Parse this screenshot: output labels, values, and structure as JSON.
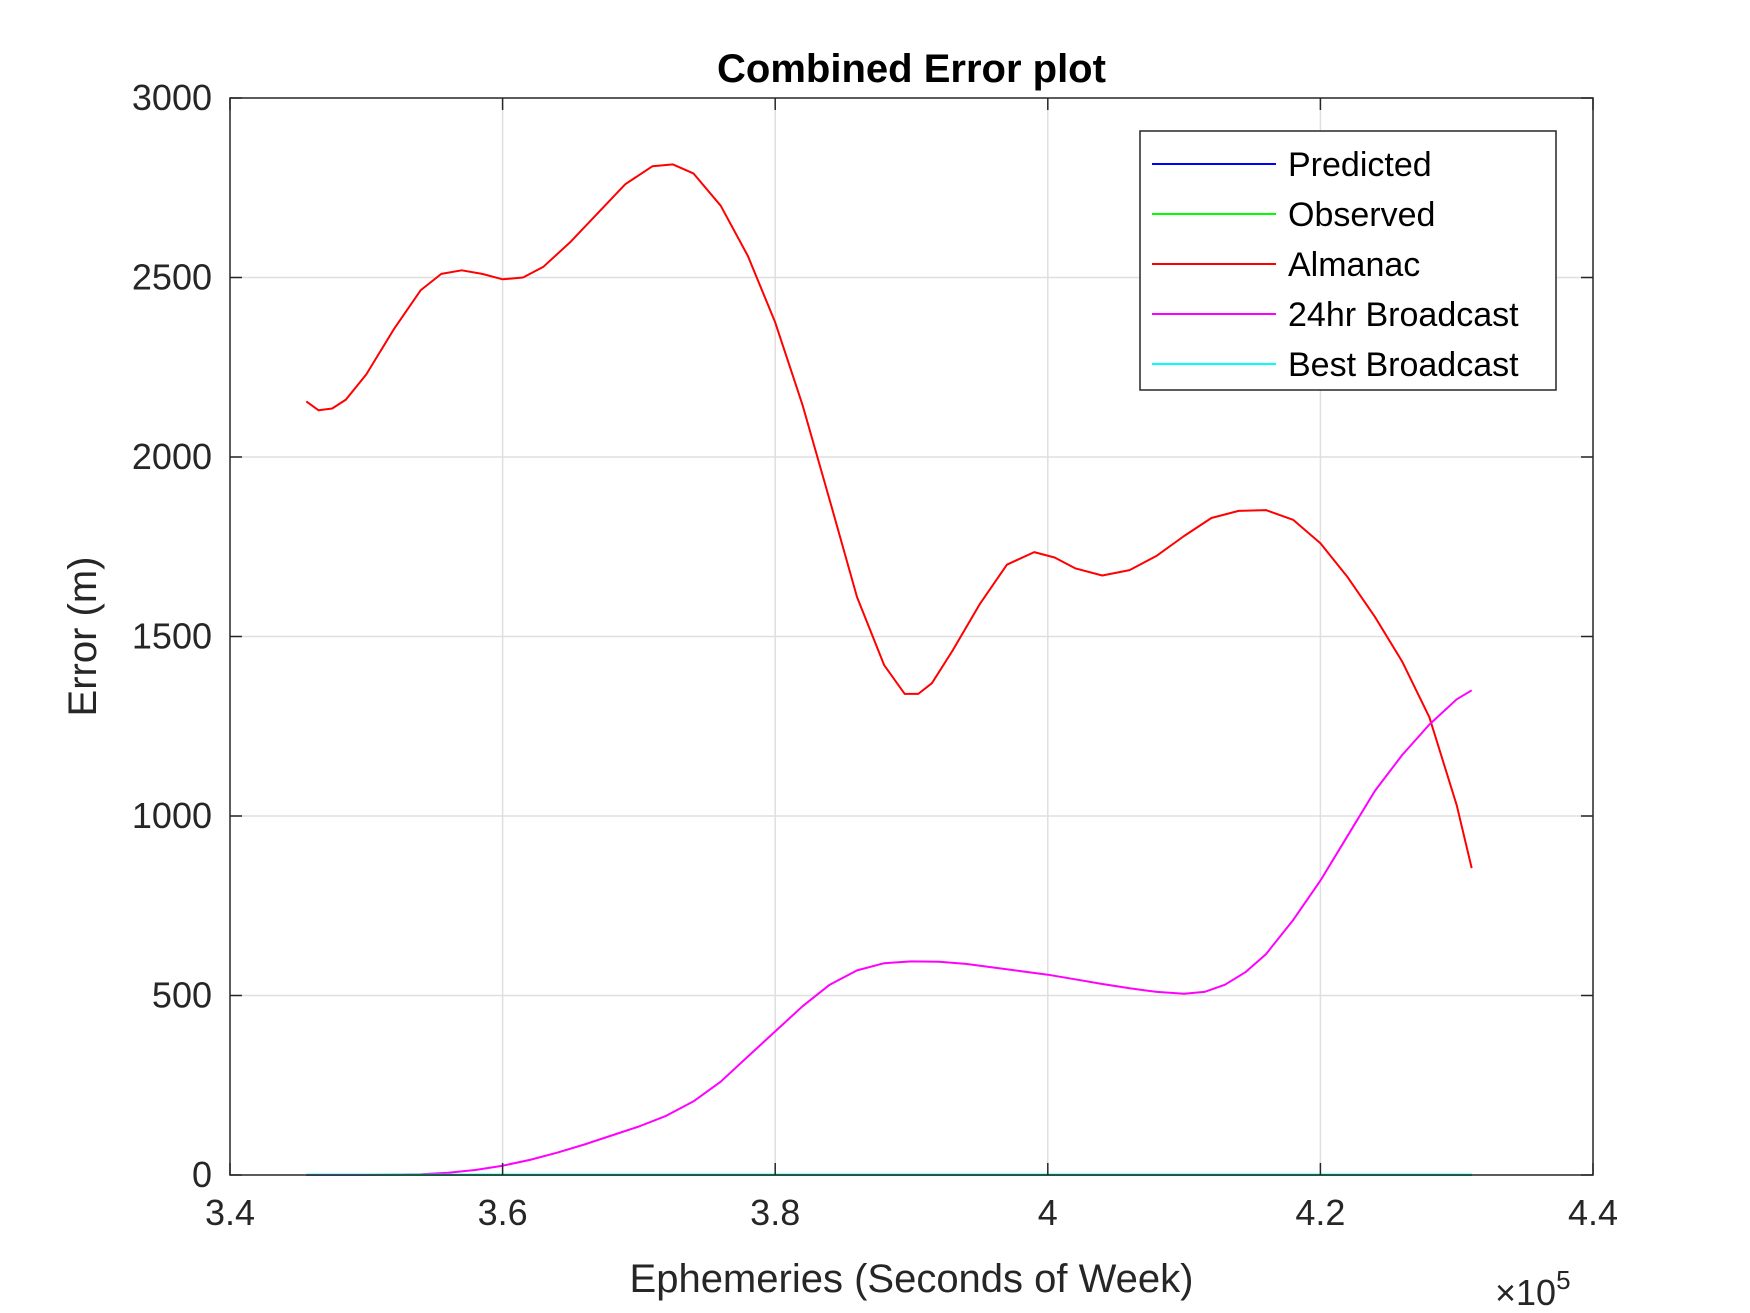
{
  "chart_data": {
    "type": "line",
    "title": "Combined Error plot",
    "xlabel": "Ephemeries (Seconds of Week)",
    "ylabel": "Error (m)",
    "x_exponent": {
      "base": "×10",
      "power": "5"
    },
    "xlim": [
      340000,
      440000
    ],
    "ylim": [
      0,
      3000
    ],
    "xticks": [
      340000,
      360000,
      380000,
      400000,
      420000,
      440000
    ],
    "xtick_labels": [
      "3.4",
      "3.6",
      "3.8",
      "4",
      "4.2",
      "4.4"
    ],
    "yticks": [
      0,
      500,
      1000,
      1500,
      2000,
      2500,
      3000
    ],
    "ytick_labels": [
      "0",
      "500",
      "1000",
      "1500",
      "2000",
      "2500",
      "3000"
    ],
    "grid": true,
    "legend_position": "top-right",
    "series": [
      {
        "name": "Predicted",
        "color": "#0000ff",
        "x": [
          345600,
          431100
        ],
        "y": [
          0,
          0
        ]
      },
      {
        "name": "Observed",
        "color": "#00ff00",
        "x": [
          345600,
          431100
        ],
        "y": [
          0,
          0
        ]
      },
      {
        "name": "Almanac",
        "color": "#ff0000",
        "x": [
          345600,
          346500,
          347500,
          348500,
          350000,
          352000,
          354000,
          355500,
          357000,
          358500,
          360000,
          361500,
          363000,
          365000,
          367000,
          369000,
          371000,
          372500,
          374000,
          376000,
          378000,
          380000,
          382000,
          384000,
          386000,
          388000,
          389500,
          390500,
          391500,
          393000,
          395000,
          397000,
          399000,
          400500,
          402000,
          404000,
          406000,
          408000,
          410000,
          412000,
          414000,
          416000,
          418000,
          420000,
          422000,
          424000,
          426000,
          428000,
          430000,
          431100
        ],
        "y": [
          2155,
          2130,
          2135,
          2160,
          2230,
          2355,
          2465,
          2510,
          2520,
          2510,
          2495,
          2500,
          2530,
          2600,
          2680,
          2760,
          2810,
          2815,
          2790,
          2700,
          2560,
          2375,
          2145,
          1880,
          1610,
          1420,
          1340,
          1340,
          1370,
          1460,
          1590,
          1700,
          1735,
          1720,
          1690,
          1670,
          1685,
          1725,
          1780,
          1830,
          1850,
          1852,
          1825,
          1760,
          1665,
          1555,
          1430,
          1275,
          1030,
          855
        ]
      },
      {
        "name": "24hr Broadcast",
        "color": "#ff00ff",
        "x": [
          345600,
          350000,
          354000,
          356000,
          358000,
          360000,
          362000,
          364000,
          366000,
          368000,
          370000,
          372000,
          374000,
          376000,
          378000,
          380000,
          382000,
          384000,
          386000,
          388000,
          390000,
          392000,
          394000,
          396000,
          398000,
          400000,
          402000,
          404000,
          406000,
          408000,
          410000,
          411500,
          413000,
          414500,
          416000,
          418000,
          420000,
          422000,
          424000,
          426000,
          428000,
          430000,
          431100
        ],
        "y": [
          0,
          0,
          2,
          6,
          14,
          26,
          42,
          62,
          85,
          110,
          135,
          165,
          205,
          260,
          330,
          400,
          470,
          530,
          570,
          590,
          595,
          594,
          588,
          578,
          568,
          558,
          545,
          532,
          520,
          510,
          505,
          510,
          530,
          565,
          615,
          710,
          820,
          945,
          1070,
          1170,
          1255,
          1325,
          1350
        ]
      },
      {
        "name": "Best Broadcast",
        "color": "#00ffff",
        "x": [
          345600,
          431100
        ],
        "y": [
          1,
          1
        ]
      }
    ]
  }
}
